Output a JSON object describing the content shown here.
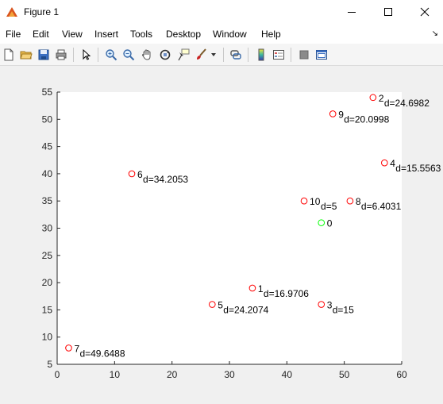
{
  "window": {
    "title": "Figure 1"
  },
  "menu": [
    "File",
    "Edit",
    "View",
    "Insert",
    "Tools",
    "Desktop",
    "Window",
    "Help"
  ],
  "toolbar": {
    "buttons": [
      "new-figure",
      "open-file",
      "save",
      "print",
      "edit-plot",
      "zoom-in",
      "zoom-out",
      "pan",
      "rotate-3d",
      "data-cursor",
      "brush",
      "link-plot",
      "colorbar",
      "legend",
      "hide-plot-tools",
      "show-plot-tools"
    ]
  },
  "colors": {
    "points": "#ff0000",
    "origin": "#00ff00",
    "axes_bg": "#ffffff",
    "figure_bg": "#f0f0f0"
  },
  "chart_data": {
    "type": "scatter",
    "title": "",
    "xlabel": "",
    "ylabel": "",
    "xlim": [
      0,
      60
    ],
    "ylim": [
      5,
      55
    ],
    "xticks": [
      "0",
      "10",
      "20",
      "30",
      "40",
      "50",
      "60"
    ],
    "yticks": [
      "5",
      "10",
      "15",
      "20",
      "25",
      "30",
      "35",
      "40",
      "45",
      "50",
      "55"
    ],
    "grid": false,
    "points": [
      {
        "x": 46,
        "y": 31,
        "id": "0",
        "d": "",
        "color": "#00ff00"
      },
      {
        "x": 34,
        "y": 19,
        "id": "1",
        "d": "d=16.9706",
        "color": "#ff0000"
      },
      {
        "x": 55,
        "y": 54,
        "id": "2",
        "d": "d=24.6982",
        "color": "#ff0000"
      },
      {
        "x": 46,
        "y": 16,
        "id": "3",
        "d": "d=15",
        "color": "#ff0000"
      },
      {
        "x": 57,
        "y": 42,
        "id": "4",
        "d": "d=15.5563",
        "color": "#ff0000"
      },
      {
        "x": 27,
        "y": 16,
        "id": "5",
        "d": "d=24.2074",
        "color": "#ff0000"
      },
      {
        "x": 13,
        "y": 40,
        "id": "6",
        "d": "d=34.2053",
        "color": "#ff0000"
      },
      {
        "x": 2,
        "y": 8,
        "id": "7",
        "d": "d=49.6488",
        "color": "#ff0000"
      },
      {
        "x": 51,
        "y": 35,
        "id": "8",
        "d": "d=6.4031",
        "color": "#ff0000"
      },
      {
        "x": 48,
        "y": 51,
        "id": "9",
        "d": "d=20.0998",
        "color": "#ff0000"
      },
      {
        "x": 43,
        "y": 35,
        "id": "10",
        "d": "d=5",
        "color": "#ff0000"
      }
    ]
  }
}
